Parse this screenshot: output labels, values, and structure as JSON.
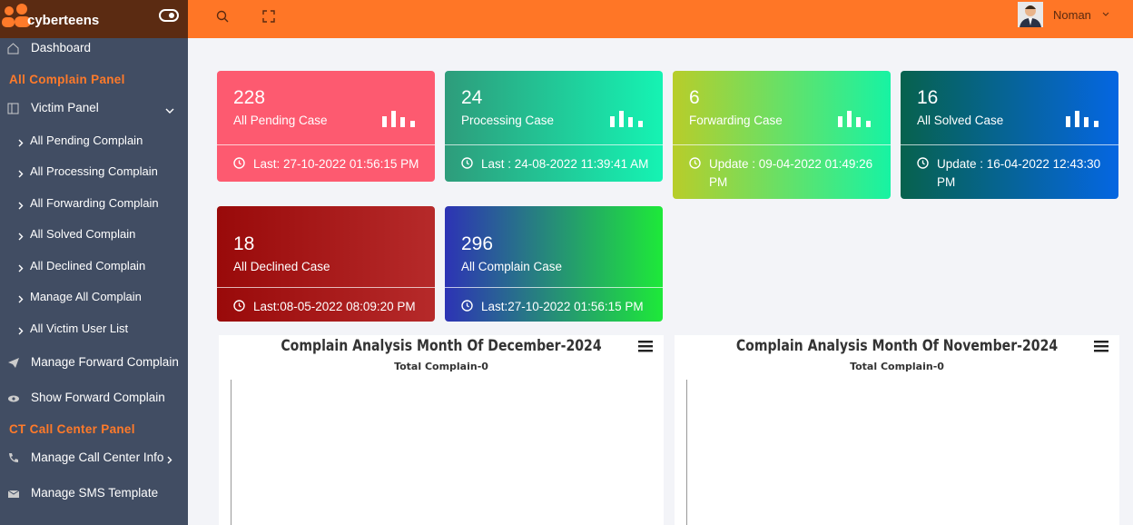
{
  "header": {
    "brand": "cyberteens",
    "user": "Noman"
  },
  "sidebar": {
    "dashboard": "Dashboard",
    "complain_panel": {
      "title": "All Complain Panel",
      "victim_panel": "Victim Panel",
      "sub_items": [
        "All Pending Complain",
        "All Processing Complain",
        "All Forwarding Complain",
        "All Solved Complain",
        "All Declined Complain",
        "Manage All Complain",
        "All Victim User List"
      ],
      "items": [
        "Manage Forward Complain",
        "Show Forward Complain"
      ]
    },
    "call_center_panel": {
      "title": "CT Call Center Panel",
      "items": [
        "Manage Call Center Info",
        "Manage SMS Template"
      ]
    }
  },
  "cards": [
    {
      "count": "228",
      "title": "All Pending Case",
      "footer": "Last: 27-10-2022 01:56:15 PM"
    },
    {
      "count": "24",
      "title": "Processing Case",
      "footer": "Last : 24-08-2022 11:39:41 AM"
    },
    {
      "count": "6",
      "title": "Forwarding Case",
      "footer": "Update : 09-04-2022 01:49:26 PM"
    },
    {
      "count": "16",
      "title": "All Solved Case",
      "footer": "Update : 16-04-2022 12:43:30 PM"
    },
    {
      "count": "18",
      "title": "All Declined Case",
      "footer": "Last:08-05-2022 08:09:20 PM"
    },
    {
      "count": "296",
      "title": "All Complain Case",
      "footer": "Last:27-10-2022 01:56:15 PM"
    }
  ],
  "charts": [
    {
      "title": "Complain Analysis Month Of December-2024",
      "subtitle": "Total Complain-0"
    },
    {
      "title": "Complain Analysis Month Of November-2024",
      "subtitle": "Total Complain-0"
    }
  ]
}
